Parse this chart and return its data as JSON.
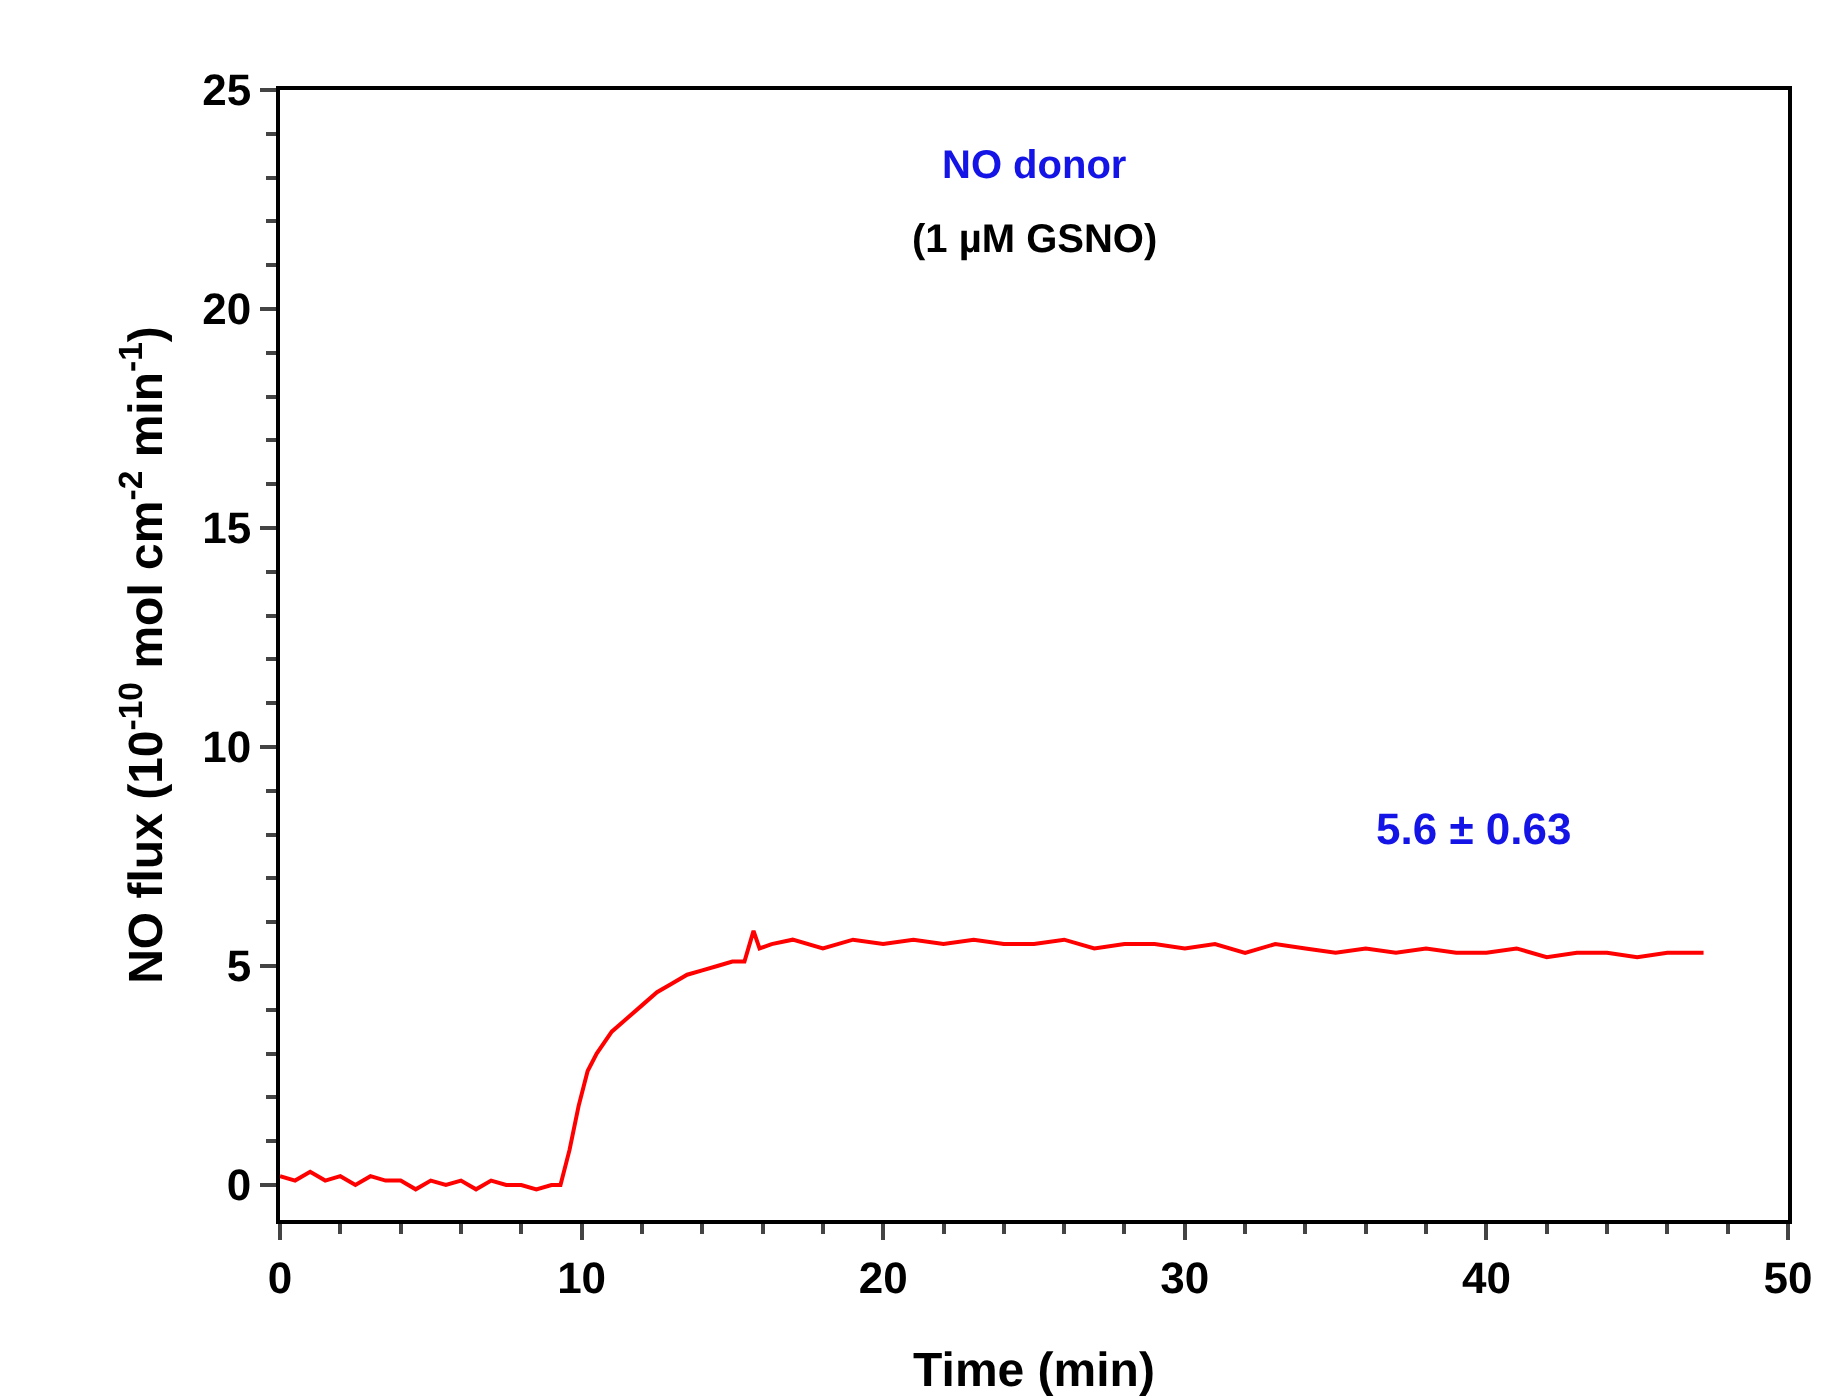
{
  "chart_data": {
    "type": "line",
    "xlabel": "Time (min)",
    "ylabel": "NO flux (10$^{-10}$ mol cm$^{-2}$ min$^{-1}$)",
    "annotations": [
      "NO donor",
      "(1 µM GSNO)",
      "5.6 ± 0.63"
    ],
    "xlim": [
      0,
      50
    ],
    "xticks": [
      0,
      10,
      20,
      30,
      40,
      50
    ],
    "ylim": [
      -0.8,
      25
    ],
    "yticks": [
      0,
      5,
      10,
      15,
      20,
      25
    ],
    "grid": false,
    "marker": "none",
    "line_style": "solid",
    "series": [
      {
        "color": "#ff0000",
        "x": [
          0,
          0.5,
          1,
          1.5,
          2,
          2.5,
          3,
          3.5,
          4,
          4.5,
          5,
          5.5,
          6,
          6.5,
          7,
          7.5,
          8,
          8.5,
          9,
          9.3,
          9.6,
          9.9,
          10.2,
          10.5,
          11,
          11.5,
          12,
          12.5,
          13,
          13.5,
          14,
          14.5,
          15,
          15.4,
          15.7,
          15.9,
          16.3,
          17,
          18,
          19,
          20,
          21,
          22,
          23,
          24,
          25,
          26,
          27,
          28,
          29,
          30,
          31,
          32,
          33,
          34,
          35,
          36,
          37,
          38,
          39,
          40,
          41,
          42,
          43,
          44,
          45,
          46,
          47.2
        ],
        "values": [
          0.2,
          0.1,
          0.3,
          0.1,
          0.2,
          0.0,
          0.2,
          0.1,
          0.1,
          -0.1,
          0.1,
          0.0,
          0.1,
          -0.1,
          0.1,
          0.0,
          0.0,
          -0.1,
          0.0,
          0.0,
          0.8,
          1.8,
          2.6,
          3.0,
          3.5,
          3.8,
          4.1,
          4.4,
          4.6,
          4.8,
          4.9,
          5.0,
          5.1,
          5.1,
          5.8,
          5.4,
          5.5,
          5.6,
          5.4,
          5.6,
          5.5,
          5.6,
          5.5,
          5.6,
          5.5,
          5.5,
          5.6,
          5.4,
          5.5,
          5.5,
          5.4,
          5.5,
          5.3,
          5.5,
          5.4,
          5.3,
          5.4,
          5.3,
          5.4,
          5.3,
          5.3,
          5.4,
          5.2,
          5.3,
          5.3,
          5.2,
          5.3,
          5.3
        ]
      }
    ]
  }
}
